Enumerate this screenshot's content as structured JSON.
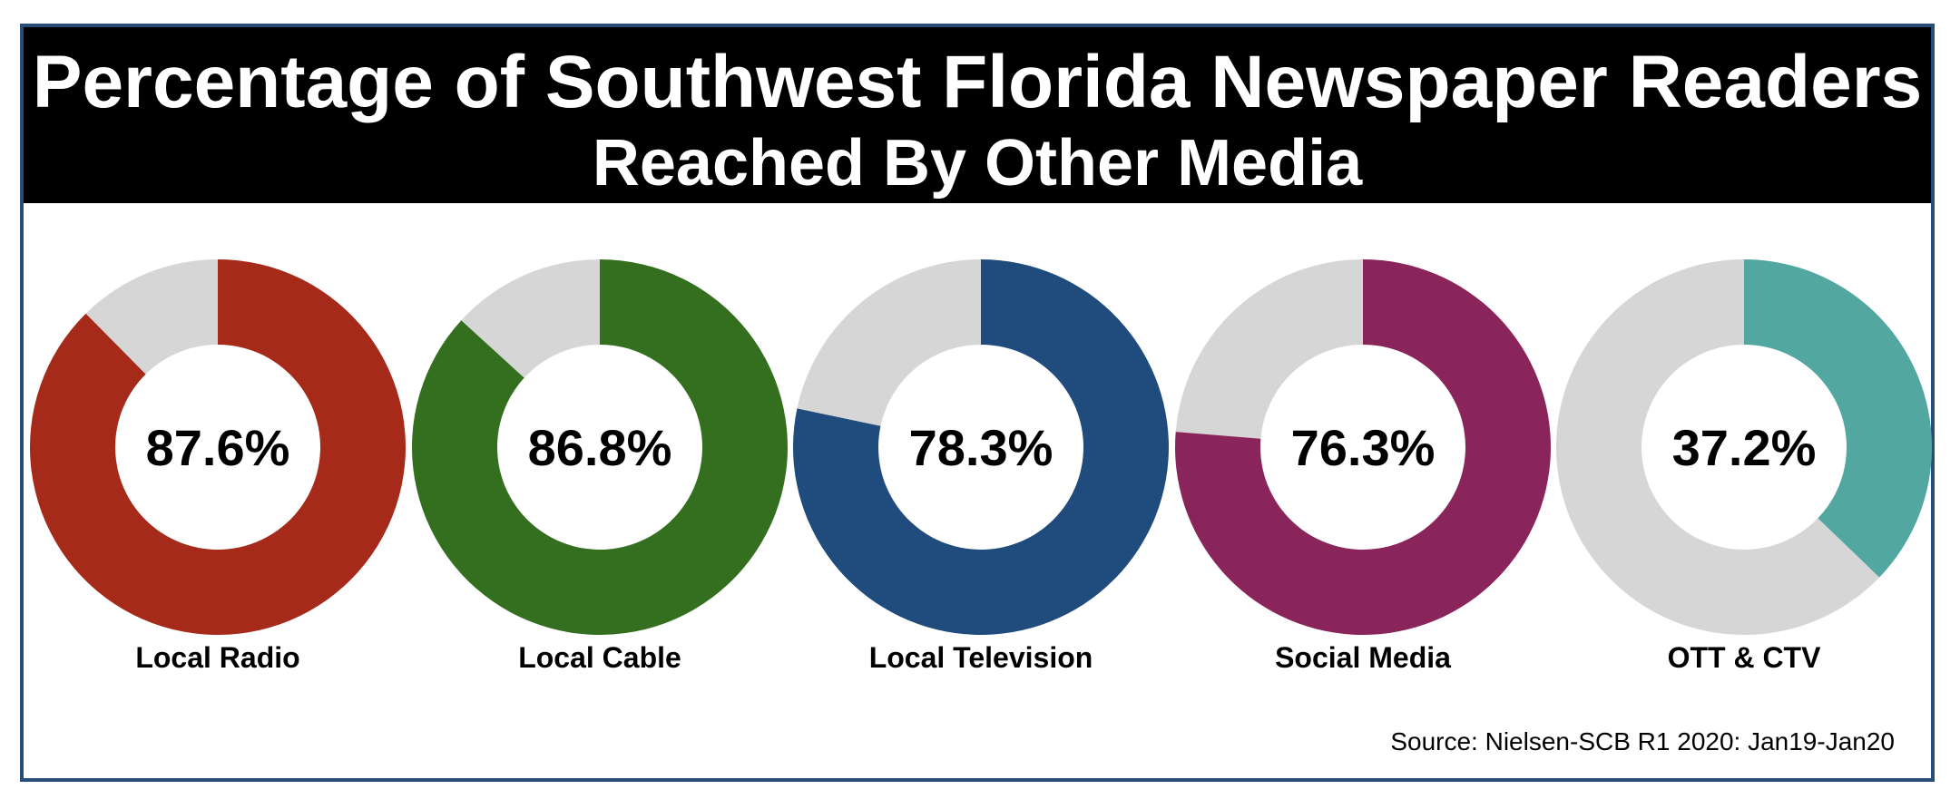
{
  "title_line1": "Percentage of Southwest Florida Newspaper Readers",
  "title_line2": "Reached By Other Media",
  "source": "Source: Nielsen-SCB R1 2020: Jan19-Jan20",
  "colors": {
    "remainder": "#d6d6d6",
    "frame": "#2a4d78",
    "title_bg": "#000000"
  },
  "chart_data": {
    "type": "pie",
    "variant": "donut",
    "title": "Percentage of Southwest Florida Newspaper Readers Reached By Other Media",
    "unit": "%",
    "categories": [
      "Local Radio",
      "Local Cable",
      "Local Television",
      "Social Media",
      "OTT & CTV"
    ],
    "values": [
      87.6,
      86.8,
      78.3,
      76.3,
      37.2
    ],
    "labels": [
      "87.6%",
      "86.8%",
      "78.3%",
      "76.3%",
      "37.2%"
    ],
    "colors": [
      "#a52a1a",
      "#346f1f",
      "#1f4b7d",
      "#8a255c",
      "#52a7a1"
    ],
    "max": 100
  }
}
